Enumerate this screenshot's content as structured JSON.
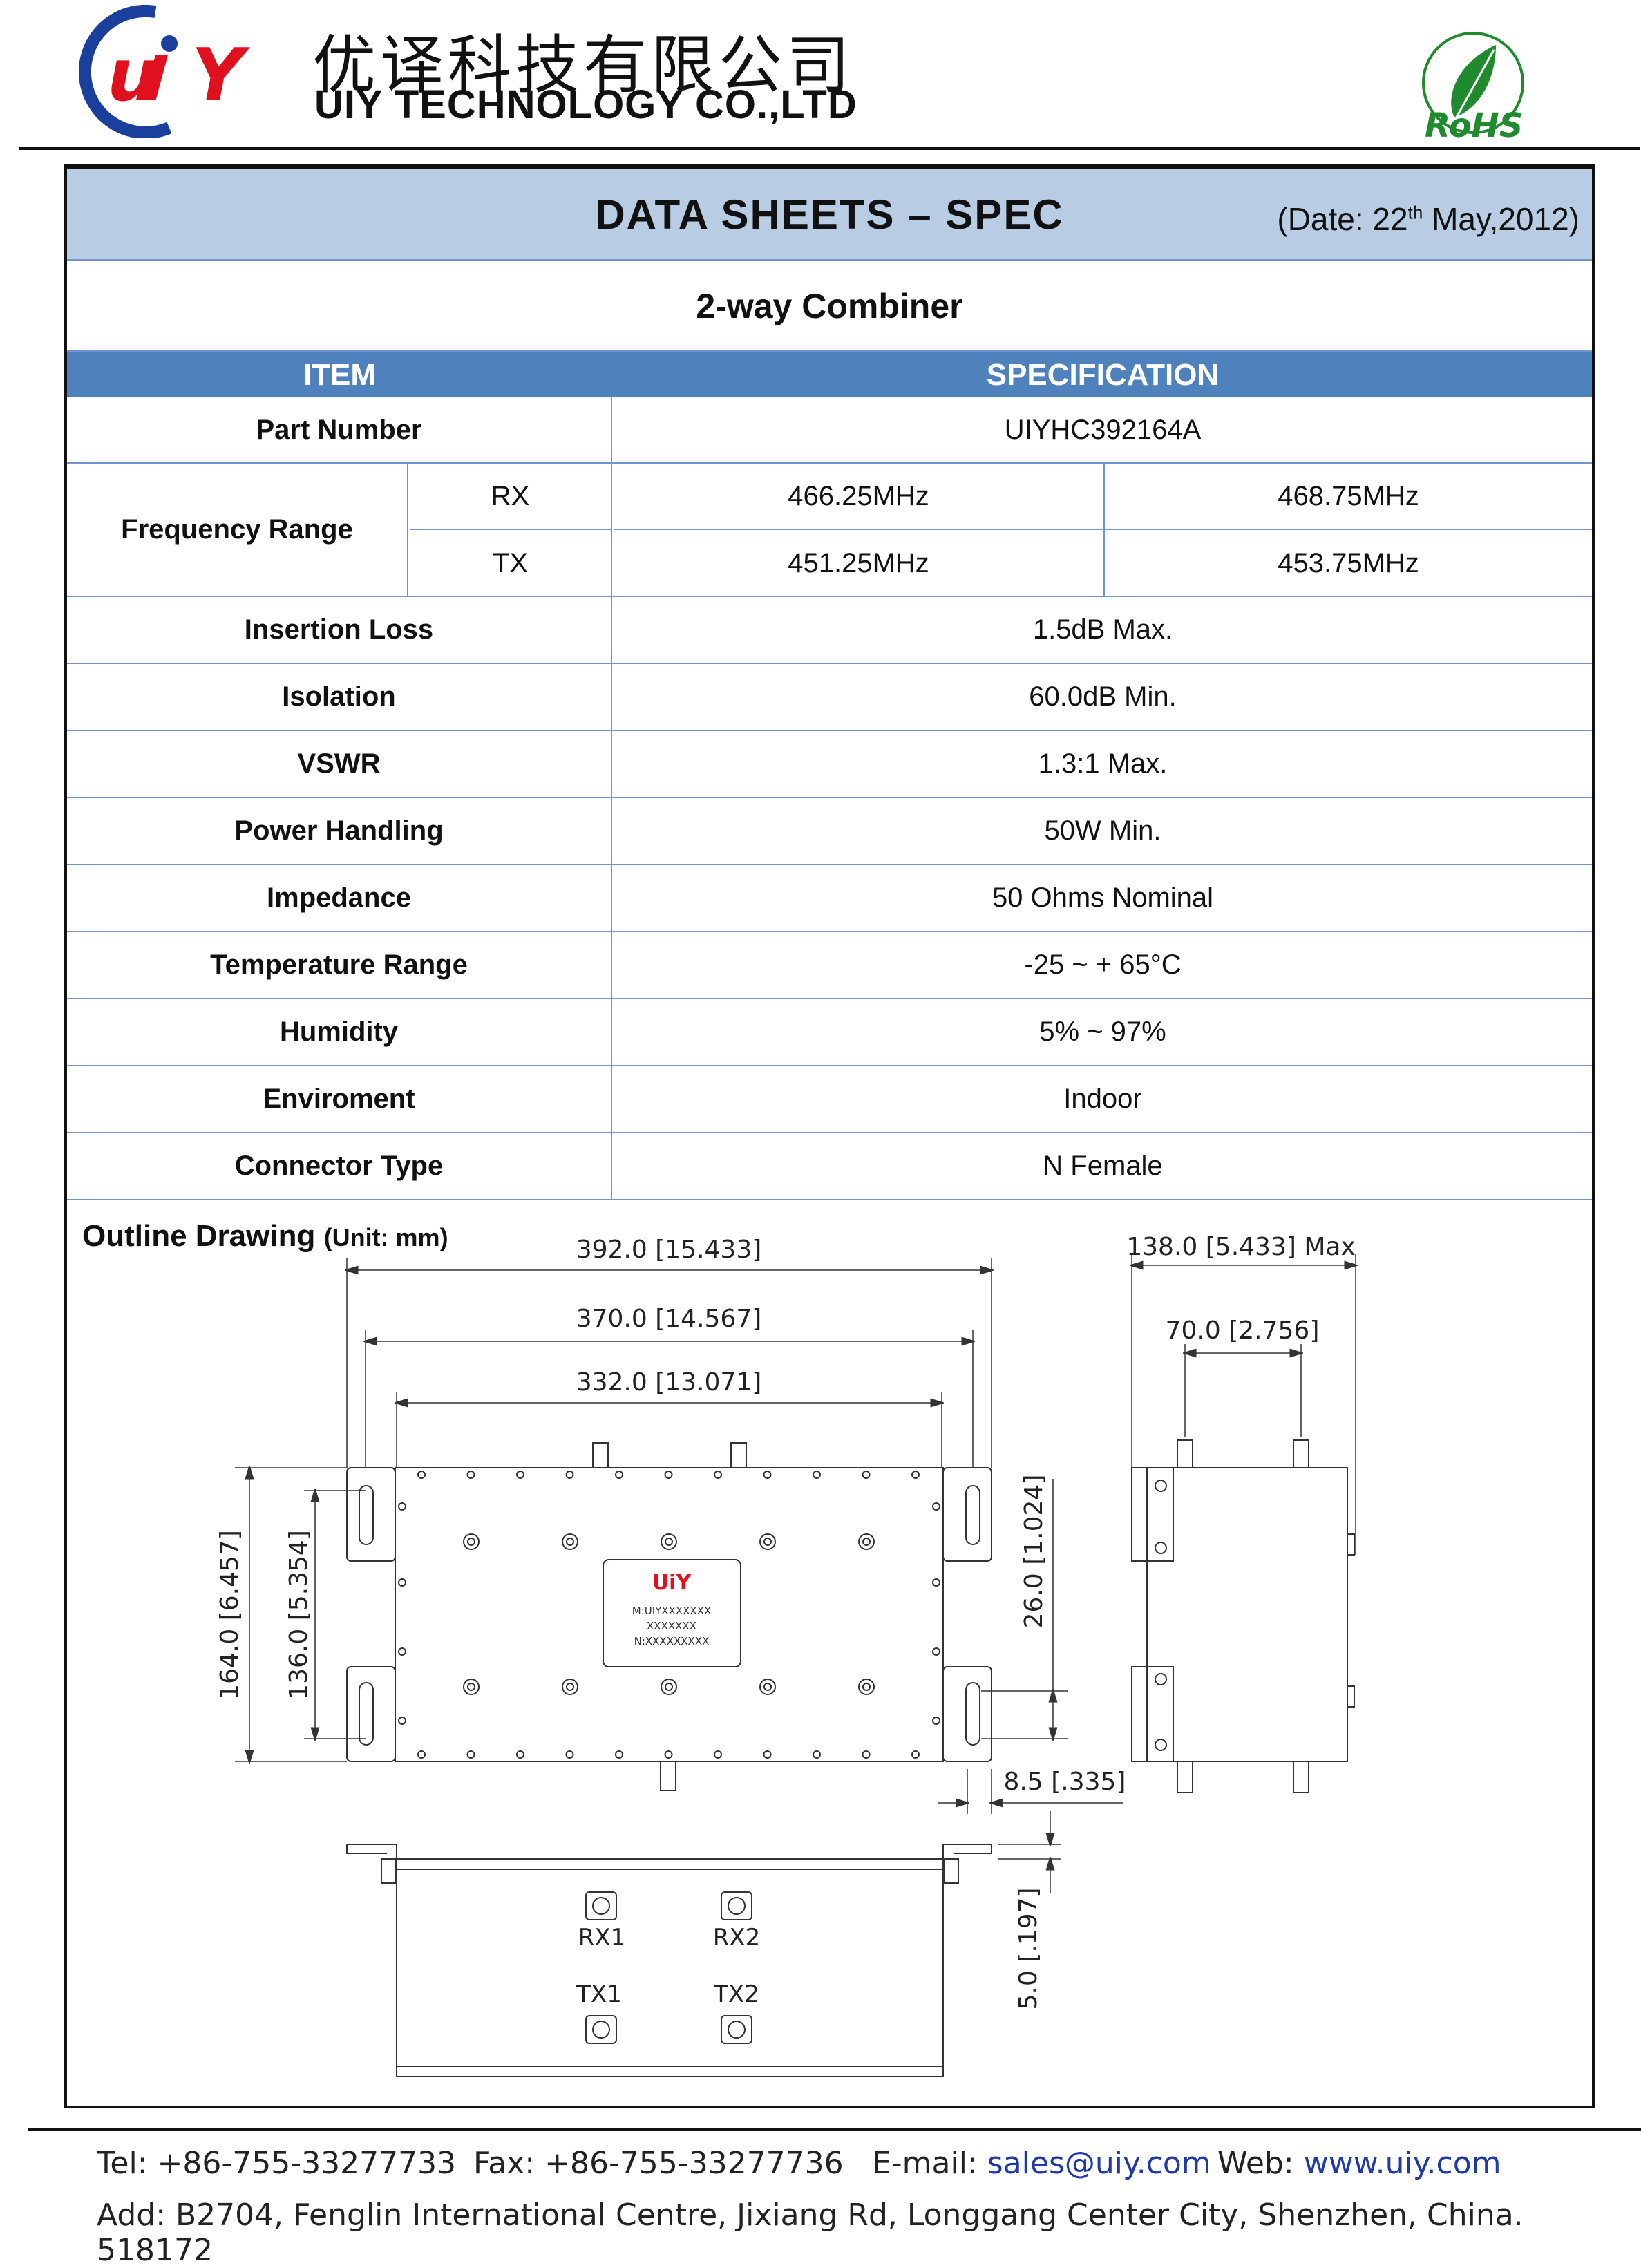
{
  "company": {
    "name_cn": "优译科技有限公司",
    "name_en": "UIY TECHNOLOGY CO.,LTD",
    "logo_text": "UiY",
    "rohs_text": "RoHS"
  },
  "sheet": {
    "title": "DATA  SHEETS  –  SPEC",
    "date_prefix": "(Date:  22",
    "date_sup": "th",
    "date_suffix": "  May,2012)",
    "subtitle": "2-way Combiner"
  },
  "table": {
    "headers": [
      "ITEM",
      "SPECIFICATION"
    ],
    "part_number": {
      "label": "Part Number",
      "value": "UIYHC392164A"
    },
    "frequency": {
      "label": "Frequency Range",
      "rx": {
        "label": "RX",
        "low": "466.25MHz",
        "high": "468.75MHz"
      },
      "tx": {
        "label": "TX",
        "low": "451.25MHz",
        "high": "453.75MHz"
      }
    },
    "rows": [
      {
        "label": "Insertion Loss",
        "value": "1.5dB Max."
      },
      {
        "label": "Isolation",
        "value": "60.0dB Min."
      },
      {
        "label": "VSWR",
        "value": "1.3:1 Max."
      },
      {
        "label": "Power Handling",
        "value": "50W Min."
      },
      {
        "label": "Impedance",
        "value": "50 Ohms Nominal"
      },
      {
        "label": "Temperature Range",
        "value": "-25 ~ + 65°C"
      },
      {
        "label": "Humidity",
        "value": "5% ~ 97%"
      },
      {
        "label": "Enviroment",
        "value": "Indoor"
      },
      {
        "label": "Connector Type",
        "value": "N Female"
      }
    ]
  },
  "drawing": {
    "title": "Outline Drawing",
    "unit": "(Unit: mm)",
    "dims": {
      "overall_length": "392.0 [15.433]",
      "flange_length": "370.0 [14.567]",
      "body_length": "332.0 [13.071]",
      "overall_width": "164.0 [6.457]",
      "flange_width": "136.0 [5.354]",
      "slot": "26.0 [1.024]",
      "flange_offset": "8.5 [.335]",
      "height_max": "138.0 [5.433] Max",
      "connector_pitch": "70.0 [2.756]",
      "flange_thickness": "5.0 [.197]"
    },
    "ports": [
      "RX1",
      "RX2",
      "TX1",
      "TX2"
    ],
    "label_lines": [
      "M:UIYXXXXXXX",
      "XXXXXXX",
      "N:XXXXXXXXX"
    ]
  },
  "footer": {
    "tel": "Tel: +86-755-33277733",
    "fax": "Fax: +86-755-33277736",
    "email_label": "E-mail: ",
    "email": "sales@uiy.com",
    "web_label": "Web: ",
    "web": "www.uiy.com",
    "address": "Add: B2704, Fenglin International Centre, Jixiang Rd, Longgang Center City, Shenzhen, China. 518172"
  },
  "colors": {
    "title_band": "#b8cce4",
    "header_band": "#4f81bd",
    "grid": "#6f95cc",
    "link": "#1f3aa8",
    "logo_blue": "#1b3f9c",
    "logo_red": "#e0101e",
    "rohs_green": "#1f8a2e"
  }
}
